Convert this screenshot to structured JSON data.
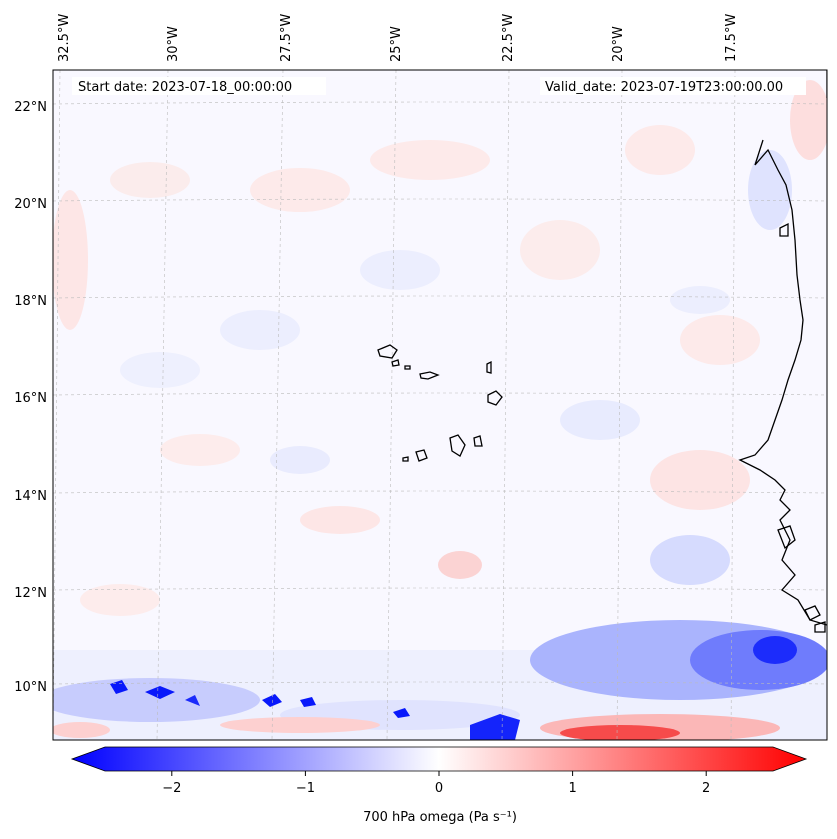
{
  "map": {
    "start_date": "Start date: 2023-07-18_00:00:00",
    "valid_date": "Valid_date: 2023-07-19T23:00:00.00",
    "lon_labels": [
      "32.5°W",
      "30°W",
      "27.5°W",
      "25°W",
      "22.5°W",
      "20°W",
      "17.5°W"
    ],
    "lat_labels": [
      "22°N",
      "20°N",
      "18°N",
      "16°N",
      "14°N",
      "12°N",
      "10°N"
    ],
    "variable": "700 hPa omega",
    "units": "(Pa s⁻¹)"
  },
  "colorbar": {
    "ticks": [
      "−2",
      "−1",
      "0",
      "1",
      "2"
    ],
    "tick_values": [
      -2,
      -1,
      0,
      1,
      2
    ],
    "range": [
      -2.5,
      2.5
    ],
    "colors": {
      "negative": "#0000ff",
      "neutral": "#ffffff",
      "positive": "#ff0000"
    }
  }
}
